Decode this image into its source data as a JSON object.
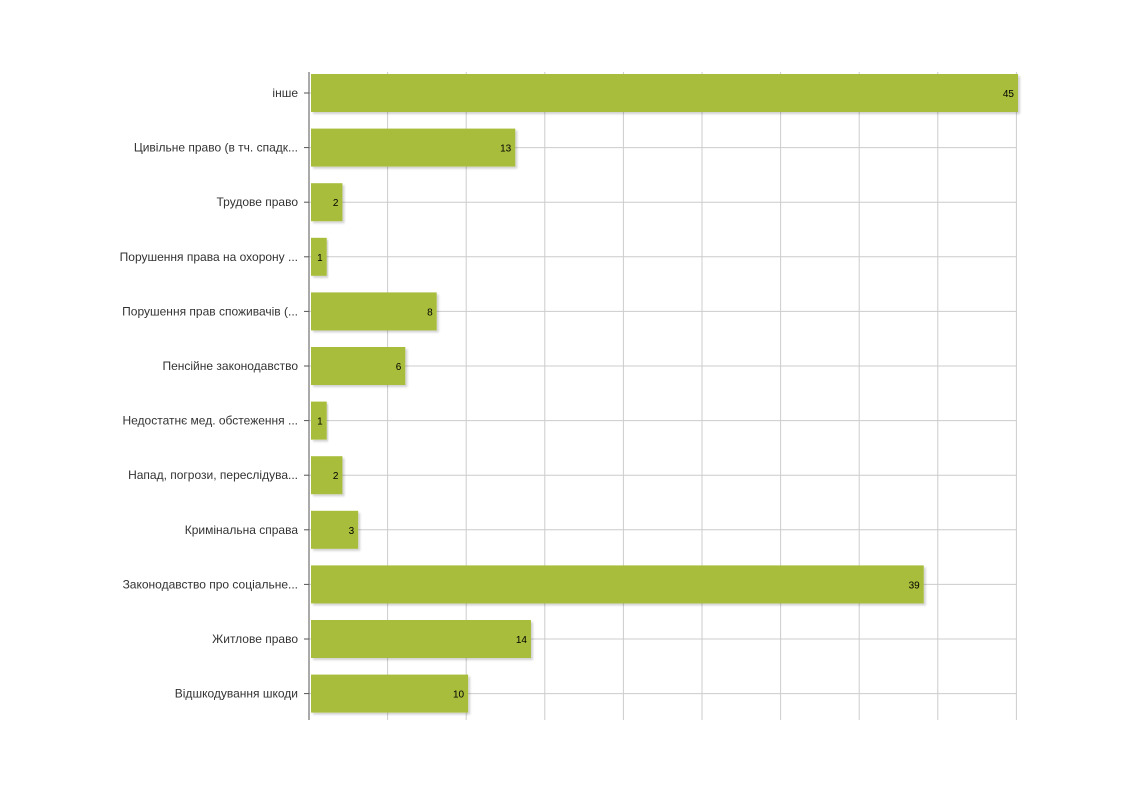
{
  "chart_data": {
    "type": "bar",
    "orientation": "horizontal",
    "categories": [
      "інше",
      "Цивільне право (в тч. спадк...",
      "Трудове право",
      "Порушення права на охорону ...",
      "Порушення прав споживачів (...",
      "Пенсійне законодавство",
      "Недостатнє мед. обстеження ...",
      "Напад, погрози, переслідува...",
      "Кримінальна справа",
      "Законодавство про соціальне...",
      "Житлове право",
      "Відшкодування шкоди"
    ],
    "values": [
      45,
      13,
      2,
      1,
      8,
      6,
      1,
      2,
      3,
      39,
      14,
      10
    ],
    "xlim": [
      0,
      45
    ],
    "grid": true,
    "legend": "none",
    "bar_color": "#a8bd3a",
    "grid_color": "#cccccc",
    "axis_color": "#555555"
  }
}
